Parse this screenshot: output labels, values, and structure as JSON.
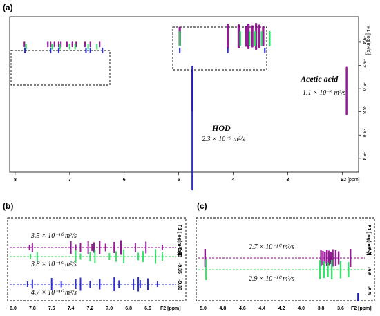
{
  "chart_data": [
    {
      "panel": "(a)",
      "type": "heatmap",
      "xlabel": "F2 [ppm]",
      "ylabel": "F1 [log(m²/s)]",
      "x_ticks": [
        "8",
        "7",
        "6",
        "5",
        "4",
        "3",
        "2"
      ],
      "y_ticks": [
        "-9.4",
        "-9.2",
        "-9.0",
        "-8.8",
        "-8.6",
        "-8.4"
      ],
      "xlim": [
        8.1,
        1.7
      ],
      "ylim": [
        -9.62,
        -8.28
      ],
      "annotations": [
        {
          "name": "Acetic acid",
          "text": "Acetic acid",
          "value": "1.1 × 10⁻⁹ m²/s"
        },
        {
          "name": "HOD",
          "text": "HOD",
          "value": "2.3 × 10⁻⁹ m²/s"
        }
      ],
      "series": [
        {
          "color": "#8b008b",
          "ppm": [
            7.83,
            7.4,
            7.35,
            7.28,
            7.2,
            7.16,
            7.05,
            6.95,
            6.88,
            6.72,
            6.62,
            6.45
          ],
          "logD": -9.38
        },
        {
          "color": "#1fe05a",
          "ppm": [
            7.8,
            7.32,
            7.18,
            7.0,
            6.9,
            6.66,
            6.5
          ],
          "logD": -9.36
        },
        {
          "color": "#1a1acd",
          "ppm": [
            7.82,
            7.35,
            7.2,
            6.7,
            6.62,
            6.4
          ],
          "logD": -9.33
        },
        {
          "color": "#8b008b",
          "ppm": [
            4.98,
            3.9,
            3.76,
            3.72,
            3.65,
            3.58,
            3.52,
            3.45,
            4.1
          ],
          "logD": -9.45
        },
        {
          "color": "#1fe05a",
          "ppm": [
            4.98,
            3.87,
            3.7,
            3.6,
            3.48,
            3.33
          ],
          "logD": -9.43
        },
        {
          "color": "#1a1acd",
          "ppm": [
            4.98,
            4.1,
            3.42
          ],
          "logD": -9.33
        },
        {
          "color": "#8b008b",
          "ppm": [
            4.75,
            1.92
          ],
          "logD": -8.98
        },
        {
          "color": "#1a1acd",
          "ppm": [
            4.75
          ],
          "logD": -8.66
        }
      ]
    },
    {
      "panel": "(b)",
      "type": "heatmap",
      "xlabel": "F2 [ppm]",
      "ylabel": "F1 [log(m²/s)]",
      "x_ticks": [
        "8.0",
        "7.8",
        "7.6",
        "7.4",
        "7.2",
        "7.0",
        "6.8",
        "6.6"
      ],
      "y_ticks": [
        "-9.40",
        "-9.35",
        "-9.30"
      ],
      "annotations": [
        {
          "text": "3.5 × 10⁻¹⁰ m²/s",
          "color": "#8b008b"
        },
        {
          "text": "3.8 × 10⁻¹⁰ m²/s",
          "color": "#1fe05a"
        },
        {
          "text": "4.7 × 10⁻¹⁰ m²/s",
          "color": "#1a1acd"
        }
      ]
    },
    {
      "panel": "(c)",
      "type": "heatmap",
      "xlabel": "F2 [ppm]",
      "ylabel": "F1 [log(m²/s)]",
      "x_ticks": [
        "5.0",
        "4.8",
        "4.6",
        "4.4",
        "4.2",
        "4.0",
        "3.8",
        "3.6"
      ],
      "y_ticks": [
        "-9.7",
        "-9.6",
        "-9.5"
      ],
      "annotations": [
        {
          "text": "2.7 × 10⁻¹⁰ m²/s",
          "color": "#8b008b"
        },
        {
          "text": "2.9 × 10⁻¹⁰ m²/s",
          "color": "#1fe05a"
        }
      ]
    }
  ]
}
